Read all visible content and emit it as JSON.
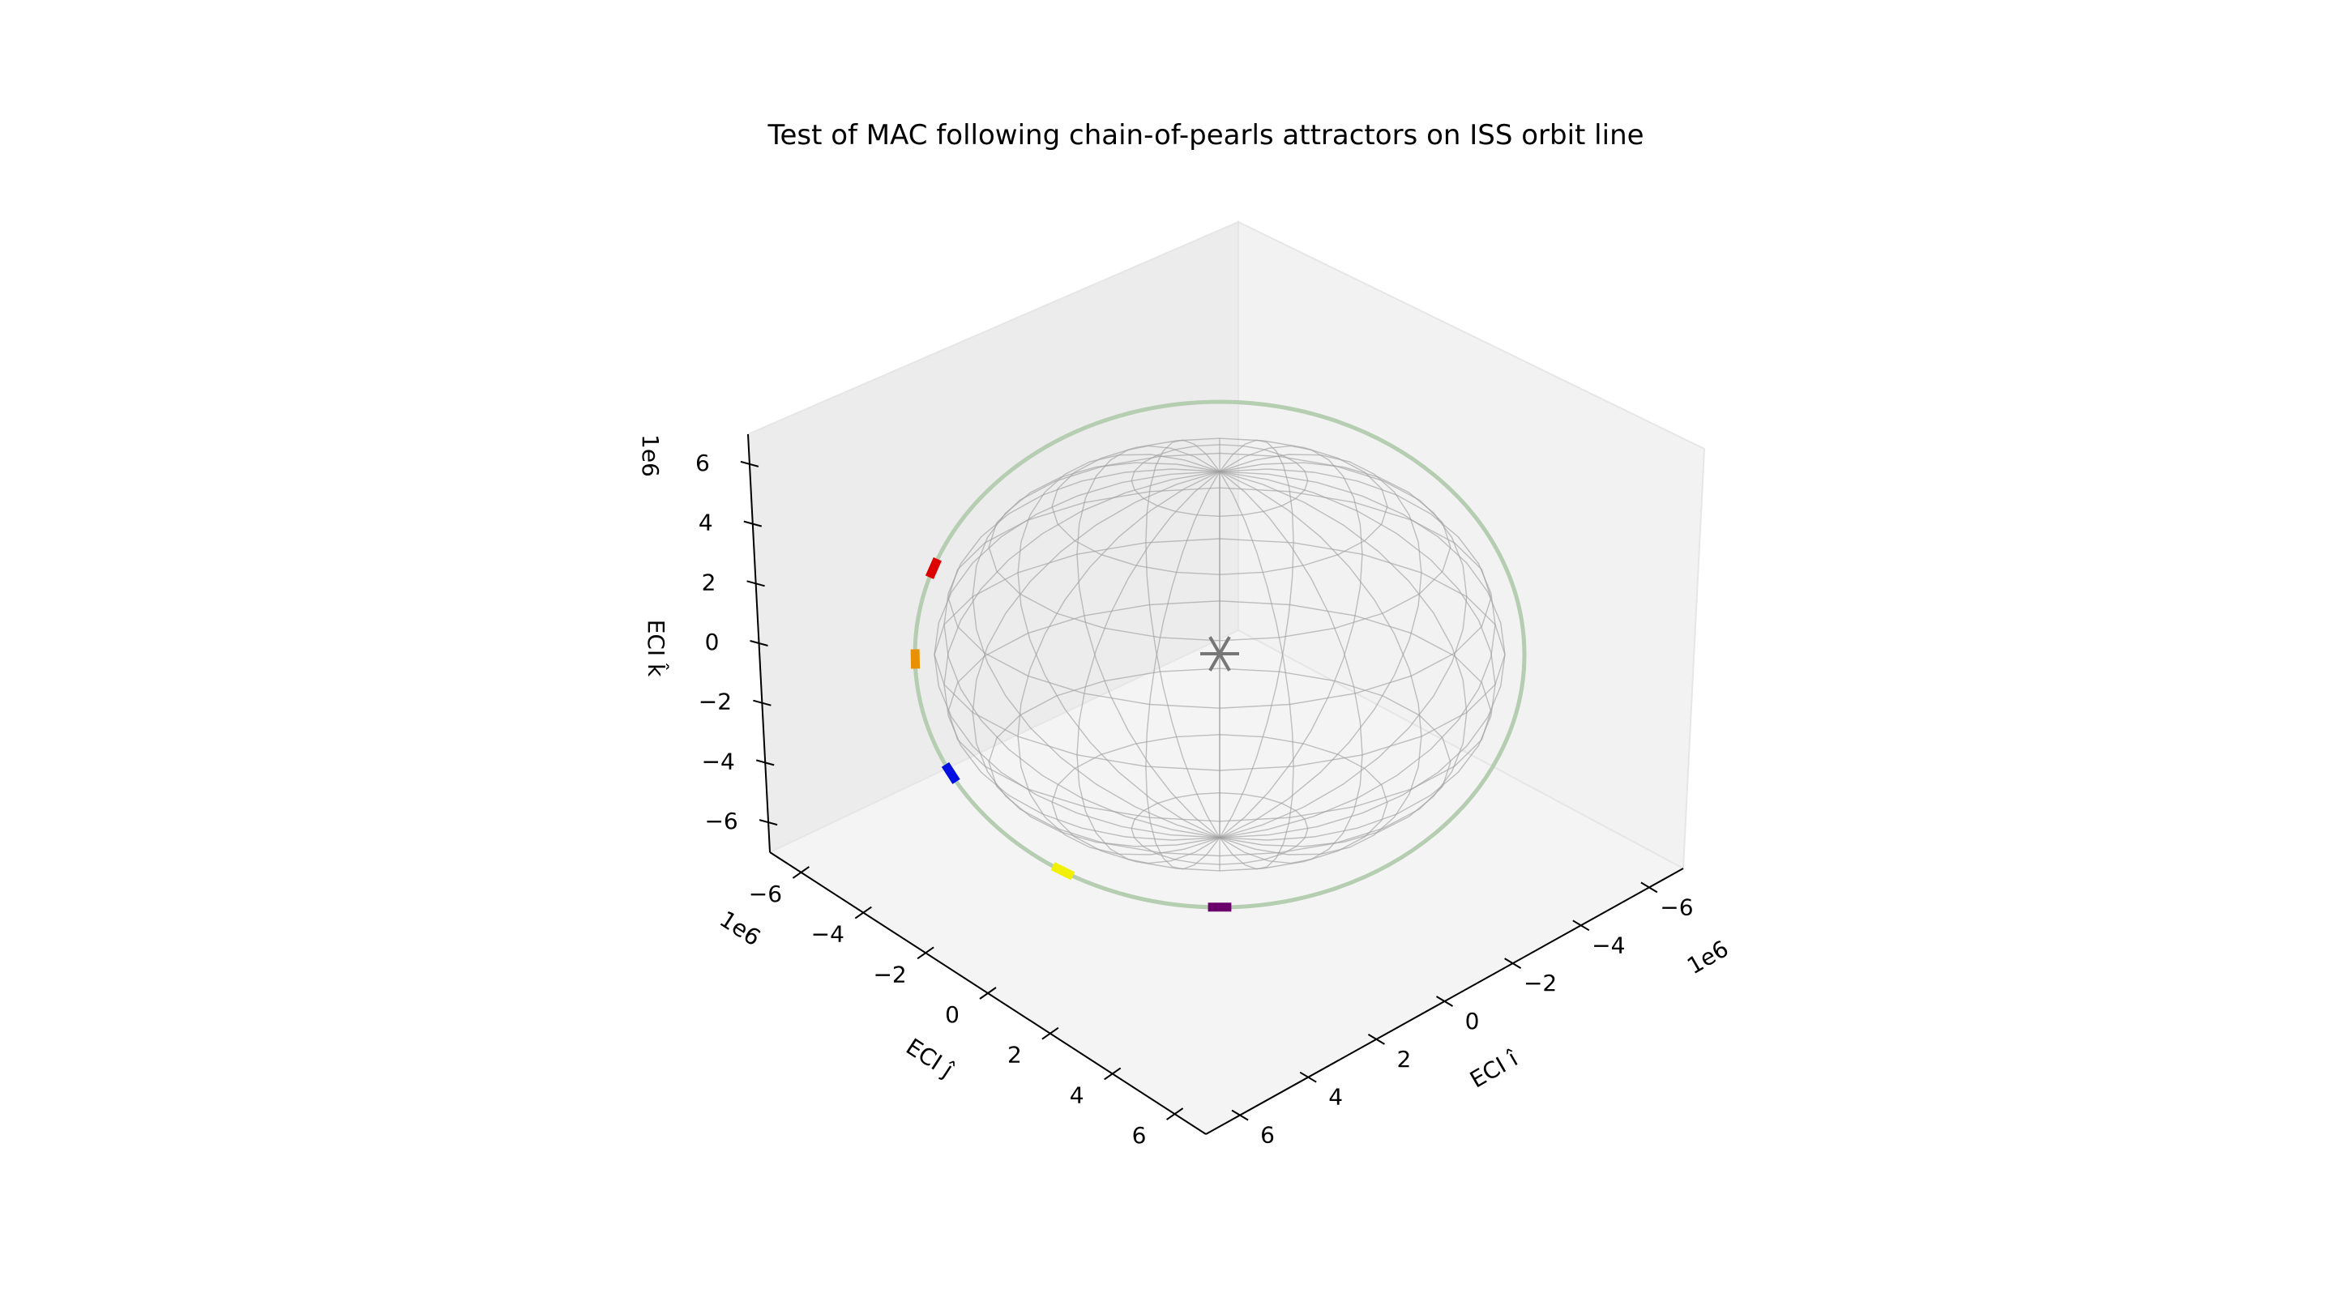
{
  "chart_data": {
    "type": "scatter",
    "projection": "3d",
    "title": "Test of MAC following chain-of-pearls attractors on ISS orbit line",
    "axes": {
      "x": {
        "label": "ECI î",
        "ticks": [
          "−6",
          "−4",
          "−2",
          "0",
          "2",
          "4",
          "6"
        ],
        "offset_text": "1e6",
        "lim": [
          -7,
          7
        ]
      },
      "y": {
        "label": "ECI ĵ",
        "ticks": [
          "−6",
          "−4",
          "−2",
          "0",
          "2",
          "4",
          "6"
        ],
        "offset_text": "1e6",
        "lim": [
          -7,
          7
        ]
      },
      "z": {
        "label": "ECI k̂",
        "ticks": [
          "6",
          "4",
          "2",
          "0",
          "−2",
          "−4",
          "−6"
        ],
        "offset_text": "1e6",
        "lim": [
          -7,
          7
        ]
      }
    },
    "unit_multiplier": 1000000,
    "earth": {
      "type": "wireframe sphere",
      "radius": 6.378,
      "color": "#a0a0a0"
    },
    "orbit": {
      "radius": 6.78,
      "color": "#b5cdb0"
    },
    "center_marker": {
      "symbol": "asterisk",
      "color": "#777777",
      "position": [
        0,
        0,
        0
      ]
    },
    "attractors": [
      {
        "color": "#dd0000",
        "angle_deg": 160
      },
      {
        "color": "#e89000",
        "angle_deg": 181
      },
      {
        "color": "#0010e0",
        "angle_deg": 208
      },
      {
        "color": "#f0f000",
        "angle_deg": 239
      },
      {
        "color": "#6a006a",
        "angle_deg": 270
      }
    ],
    "grid": false,
    "legend": "none"
  }
}
